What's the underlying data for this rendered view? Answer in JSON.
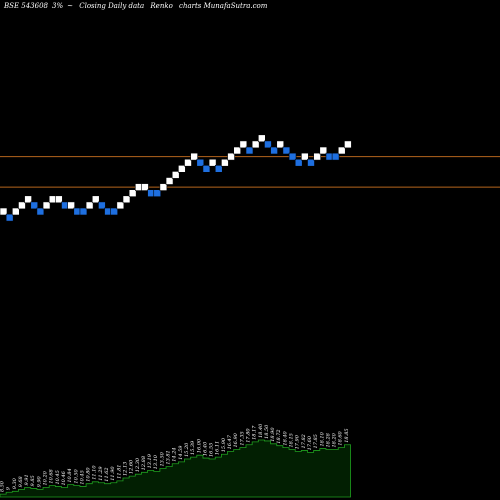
{
  "header": {
    "symbol": "BSE 543608",
    "box_size": "3%",
    "separator": "~",
    "chart_type": "Closing Daily data",
    "chart_name": "Renko",
    "site": "charts MunafaSutra.com"
  },
  "colors": {
    "background": "#000000",
    "up_brick": "#ffffff",
    "down_brick": "#1e6fe0",
    "brick_border": "#000000",
    "resistance_line": "#b5651d",
    "volume_fill": "#021f02",
    "volume_stroke": "#1fa01f"
  },
  "chart_data": {
    "type": "renko",
    "title": "BSE 543608 3%~ Closing Daily data Renko charts MunafaSutra.com",
    "box_size_percent": 3,
    "brick_levels": [
      7,
      6,
      7,
      8,
      9,
      8,
      7,
      8,
      9,
      9,
      8,
      8,
      7,
      7,
      8,
      9,
      8,
      7,
      7,
      8,
      9,
      10,
      11,
      11,
      10,
      10,
      11,
      12,
      13,
      14,
      15,
      16,
      15,
      14,
      15,
      14,
      15,
      16,
      17,
      18,
      17,
      18,
      19,
      18,
      17,
      18,
      17,
      16,
      15,
      16,
      15,
      16,
      17,
      16,
      16,
      17,
      18
    ],
    "brick_directions": [
      "up",
      "down",
      "up",
      "up",
      "up",
      "down",
      "down",
      "up",
      "up",
      "up",
      "down",
      "up",
      "down",
      "down",
      "up",
      "up",
      "down",
      "down",
      "down",
      "up",
      "up",
      "up",
      "up",
      "up",
      "down",
      "down",
      "up",
      "up",
      "up",
      "up",
      "up",
      "up",
      "down",
      "down",
      "up",
      "down",
      "up",
      "up",
      "up",
      "up",
      "down",
      "up",
      "up",
      "down",
      "down",
      "up",
      "down",
      "down",
      "down",
      "up",
      "down",
      "up",
      "up",
      "down",
      "down",
      "up",
      "up"
    ],
    "horizontal_lines": [
      16,
      11
    ],
    "volume_labels": [
      "8.50",
      "9",
      "9.30",
      "9.68",
      "9.91",
      "9.85",
      "9.90",
      "10.20",
      "10.68",
      "10.45",
      "10.46",
      "10.84",
      "10.50",
      "10.45",
      "10.80",
      "11.10",
      "11.29",
      "11.62",
      "11.90",
      "11.81",
      "12.13",
      "12.60",
      "12.30",
      "12.88",
      "13.19",
      "13.10",
      "13.50",
      "13.81",
      "14.24",
      "14.59",
      "15.20",
      "15.39",
      "16.00",
      "16.40",
      "16.55",
      "16.11",
      "15.90",
      "16.47",
      "16.90",
      "17.35",
      "17.80",
      "18.17",
      "18.40",
      "18.50",
      "18.90",
      "18.72",
      "18.40",
      "18.15",
      "17.90",
      "17.82",
      "17.60",
      "17.85",
      "18.10",
      "18.28",
      "18.20",
      "18.60",
      "18.85"
    ],
    "volume_values": [
      3,
      5,
      6,
      8,
      10,
      9,
      8,
      10,
      12,
      11,
      10,
      13,
      12,
      11,
      14,
      16,
      15,
      14,
      15,
      17,
      20,
      22,
      24,
      26,
      28,
      27,
      30,
      32,
      35,
      37,
      40,
      42,
      44,
      41,
      40,
      42,
      45,
      48,
      50,
      52,
      55,
      58,
      60,
      59,
      56,
      54,
      52,
      50,
      48,
      49,
      47,
      49,
      51,
      50,
      50,
      52,
      55
    ],
    "grid": false,
    "legend": "none"
  }
}
